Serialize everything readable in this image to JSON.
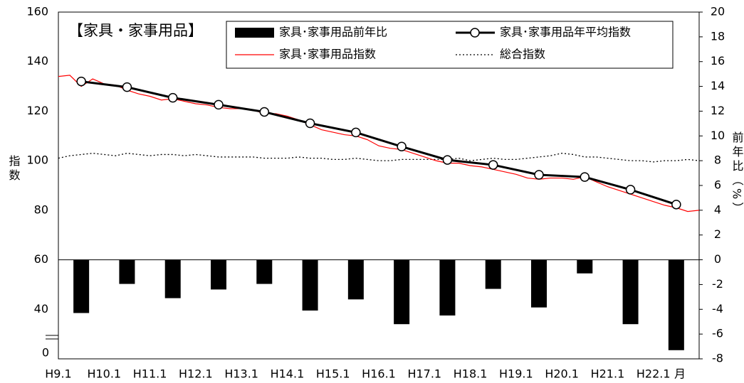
{
  "chart_data": {
    "type": "bar_line",
    "title": "【家具・家事用品】",
    "y_label": "指数",
    "y2_label": "前年比（%）",
    "x_label": "月",
    "y_axis_break_label": "0",
    "xlim": [
      0,
      168
    ],
    "xticks": [
      {
        "value": 0,
        "label": "H9.1"
      },
      {
        "value": 12,
        "label": "H10.1"
      },
      {
        "value": 24,
        "label": "H11.1"
      },
      {
        "value": 36,
        "label": "H12.1"
      },
      {
        "value": 48,
        "label": "H13.1"
      },
      {
        "value": 60,
        "label": "H14.1"
      },
      {
        "value": 72,
        "label": "H15.1"
      },
      {
        "value": 84,
        "label": "H16.1"
      },
      {
        "value": 96,
        "label": "H17.1"
      },
      {
        "value": 108,
        "label": "H18.1"
      },
      {
        "value": 120,
        "label": "H19.1"
      },
      {
        "value": 132,
        "label": "H20.1"
      },
      {
        "value": 144,
        "label": "H21.1"
      },
      {
        "value": 156,
        "label": "H22.1"
      }
    ],
    "ylim": [
      20,
      160
    ],
    "yticks": [
      40,
      60,
      80,
      100,
      120,
      140,
      160
    ],
    "y2lim": [
      -8,
      20
    ],
    "y2ticks": [
      -8,
      -6,
      -4,
      -2,
      0,
      2,
      4,
      6,
      8,
      10,
      12,
      14,
      16,
      18,
      20
    ],
    "grid": true,
    "series": [
      {
        "name": "家具･家事用品前年比",
        "kind": "bar",
        "axis": "y2",
        "color": "#000000",
        "x": [
          6,
          18,
          30,
          42,
          54,
          66,
          78,
          90,
          102,
          114,
          126,
          138,
          150,
          162
        ],
        "values": [
          -4.3,
          -1.95,
          -3.1,
          -2.4,
          -1.95,
          -4.1,
          -3.2,
          -5.2,
          -4.5,
          -2.35,
          -3.85,
          -1.1,
          -5.2,
          -7.3
        ]
      },
      {
        "name": "家具･家事用品年平均指数",
        "kind": "line_marker",
        "color": "#000000",
        "x": [
          6,
          18,
          30,
          42,
          54,
          66,
          78,
          90,
          102,
          114,
          126,
          138,
          150,
          162
        ],
        "values": [
          132,
          129.7,
          125.4,
          122.6,
          119.7,
          115.1,
          111.4,
          105.7,
          100.3,
          98.3,
          94.3,
          93.4,
          88.3,
          82.3
        ]
      },
      {
        "name": "家具･家事用品指数",
        "kind": "line",
        "color": "#ff0000",
        "x": [
          0,
          3,
          6,
          9,
          12,
          15,
          18,
          21,
          24,
          27,
          30,
          33,
          36,
          39,
          42,
          45,
          48,
          51,
          54,
          57,
          60,
          63,
          66,
          69,
          72,
          75,
          78,
          81,
          84,
          87,
          90,
          93,
          96,
          99,
          102,
          105,
          108,
          111,
          114,
          117,
          120,
          123,
          126,
          129,
          132,
          135,
          138,
          141,
          144,
          147,
          150,
          153,
          156,
          159,
          162,
          165,
          168
        ],
        "values": [
          134,
          134.5,
          130,
          133,
          131,
          130.5,
          128.5,
          127,
          126,
          124.5,
          125,
          124,
          123,
          122.5,
          121.5,
          121,
          121,
          120.5,
          119,
          119,
          118,
          116.5,
          114.5,
          112.5,
          111.5,
          110.5,
          110,
          108.5,
          106,
          105,
          104.5,
          103,
          101.5,
          100,
          99,
          99,
          98,
          97.5,
          96.5,
          95.5,
          94.5,
          93,
          92.5,
          93,
          93,
          92.5,
          93.5,
          91.5,
          89.5,
          88,
          86.5,
          85,
          83.5,
          82,
          81,
          79.5,
          80
        ]
      },
      {
        "name": "総合指数",
        "kind": "dotted",
        "color": "#000000",
        "x": [
          0,
          3,
          6,
          9,
          12,
          15,
          18,
          21,
          24,
          27,
          30,
          33,
          36,
          39,
          42,
          45,
          48,
          51,
          54,
          57,
          60,
          63,
          66,
          69,
          72,
          75,
          78,
          81,
          84,
          87,
          90,
          93,
          96,
          99,
          102,
          105,
          108,
          111,
          114,
          117,
          120,
          123,
          126,
          129,
          132,
          135,
          138,
          141,
          144,
          147,
          150,
          153,
          156,
          159,
          162,
          165,
          168
        ],
        "values": [
          101,
          102,
          102.5,
          103,
          102.5,
          102,
          103,
          102.5,
          102,
          102.5,
          102.5,
          102,
          102.5,
          102,
          101.5,
          101.5,
          101.5,
          101.5,
          101,
          101,
          101,
          101.5,
          101,
          101,
          100.5,
          100.5,
          101,
          100.5,
          100,
          100,
          100.5,
          100.5,
          100.5,
          100.5,
          100.5,
          101,
          100,
          100.5,
          101,
          100.5,
          100.5,
          101,
          101.5,
          102,
          103,
          102.5,
          101.5,
          101.5,
          101,
          100.5,
          100,
          100,
          99.5,
          100,
          100,
          100.5,
          100
        ]
      }
    ]
  }
}
